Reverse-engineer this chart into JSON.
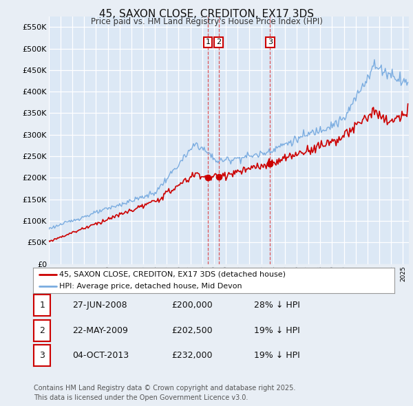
{
  "title": "45, SAXON CLOSE, CREDITON, EX17 3DS",
  "subtitle": "Price paid vs. HM Land Registry's House Price Index (HPI)",
  "background_color": "#e8eef5",
  "plot_bg_color": "#dce8f5",
  "ylim": [
    0,
    575000
  ],
  "yticks": [
    0,
    50000,
    100000,
    150000,
    200000,
    250000,
    300000,
    350000,
    400000,
    450000,
    500000,
    550000
  ],
  "ytick_labels": [
    "£0",
    "£50K",
    "£100K",
    "£150K",
    "£200K",
    "£250K",
    "£300K",
    "£350K",
    "£400K",
    "£450K",
    "£500K",
    "£550K"
  ],
  "legend_line1": "45, SAXON CLOSE, CREDITON, EX17 3DS (detached house)",
  "legend_line2": "HPI: Average price, detached house, Mid Devon",
  "red_line_color": "#cc0000",
  "blue_line_color": "#7aace0",
  "sale_markers": [
    {
      "date_num": 2008.49,
      "price": 200000,
      "label": "1"
    },
    {
      "date_num": 2009.39,
      "price": 202500,
      "label": "2"
    },
    {
      "date_num": 2013.75,
      "price": 232000,
      "label": "3"
    }
  ],
  "table_rows": [
    {
      "num": "1",
      "date": "27-JUN-2008",
      "price": "£200,000",
      "hpi": "28% ↓ HPI"
    },
    {
      "num": "2",
      "date": "22-MAY-2009",
      "price": "£202,500",
      "hpi": "19% ↓ HPI"
    },
    {
      "num": "3",
      "date": "04-OCT-2013",
      "price": "£232,000",
      "hpi": "19% ↓ HPI"
    }
  ],
  "footer": "Contains HM Land Registry data © Crown copyright and database right 2025.\nThis data is licensed under the Open Government Licence v3.0.",
  "xstart": 1995.0,
  "xend": 2025.5
}
